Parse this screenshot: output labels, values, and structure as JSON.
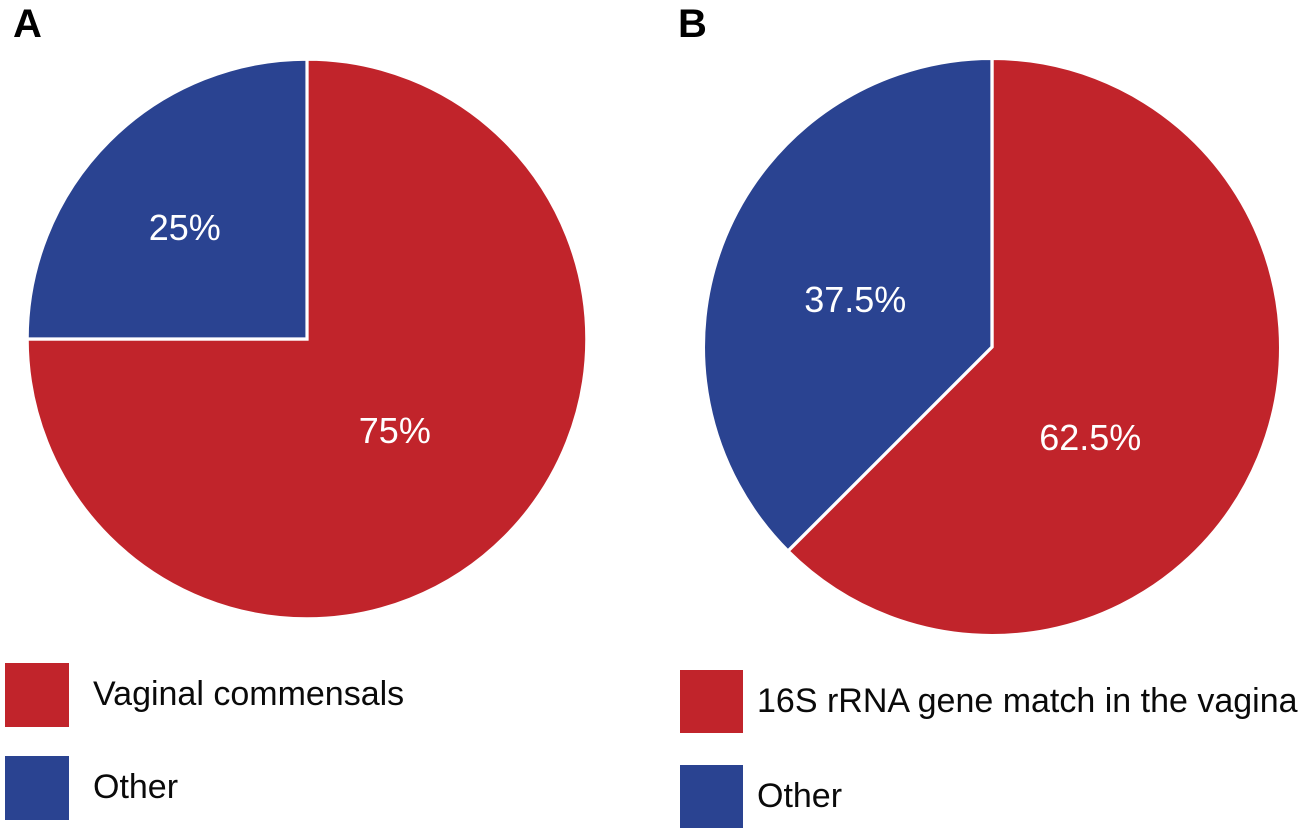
{
  "figure": {
    "background": "#ffffff",
    "panel_a_letter": "A",
    "panel_b_letter": "B"
  },
  "colors": {
    "red": "#C1242B",
    "blue": "#2A4391",
    "divider": "#ffffff",
    "text": "#0a0a0a",
    "slice_text": "#ffffff"
  },
  "chart_data": [
    {
      "type": "pie",
      "panel": "A",
      "title": "",
      "start_angle_deg": -90,
      "direction": "clockwise",
      "legend_position": "bottom-left",
      "slices": [
        {
          "label": "Vaginal commensals",
          "value": 75,
          "display": "75%",
          "color_key": "red",
          "label_pos": {
            "x": 0.653,
            "y": 0.66
          }
        },
        {
          "label": "Other",
          "value": 25,
          "display": "25%",
          "color_key": "blue",
          "label_pos": {
            "x": 0.287,
            "y": 0.307
          }
        }
      ]
    },
    {
      "type": "pie",
      "panel": "B",
      "title": "",
      "start_angle_deg": -90,
      "direction": "clockwise",
      "legend_position": "bottom-left",
      "slices": [
        {
          "label": "16S rRNA gene match in the vagina",
          "value": 62.5,
          "display": "62.5%",
          "color_key": "red",
          "label_pos": {
            "x": 0.666,
            "y": 0.654
          }
        },
        {
          "label": "Other",
          "value": 37.5,
          "display": "37.5%",
          "color_key": "blue",
          "label_pos": {
            "x": 0.269,
            "y": 0.421
          }
        }
      ]
    }
  ],
  "layout_note": "two-panel pie figure"
}
